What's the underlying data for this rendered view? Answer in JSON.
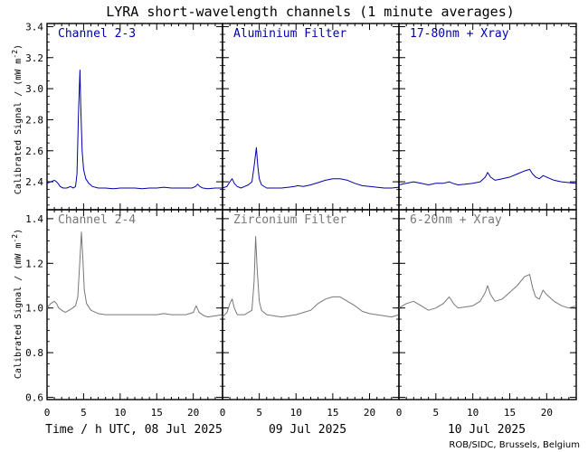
{
  "title": "LYRA short-wavelength channels (1 minute averages)",
  "credit": "ROB/SIDC, Brussels, Belgium",
  "ylabel_main": "Calibrated Signal / (mW m",
  "ylabel_sup": "-2",
  "ylabel_end": ")",
  "colors": {
    "top": "#0000aa",
    "bottom": "#777777",
    "axis": "#000000"
  },
  "chart_data": {
    "type": "scatter",
    "x_ticks": [
      "0",
      "5",
      "10",
      "15",
      "20"
    ],
    "x_range": [
      0,
      24
    ],
    "day_labels": [
      "Time / h UTC, 08 Jul 2025",
      "09 Jul 2025",
      "10 Jul 2025"
    ],
    "rows": [
      {
        "ylim": [
          2.22,
          3.42
        ],
        "y_ticks": [
          "2.4",
          "2.6",
          "2.8",
          "3.0",
          "3.2",
          "3.4"
        ],
        "y_tick_values": [
          2.4,
          2.6,
          2.8,
          3.0,
          3.2,
          3.4
        ],
        "panels": [
          {
            "name": "Channel 2-3",
            "series": [
              [
                0,
                2.39
              ],
              [
                0.5,
                2.4
              ],
              [
                1,
                2.41
              ],
              [
                1.3,
                2.4
              ],
              [
                1.5,
                2.39
              ],
              [
                1.8,
                2.37
              ],
              [
                2.2,
                2.36
              ],
              [
                2.7,
                2.36
              ],
              [
                3.2,
                2.37
              ],
              [
                3.6,
                2.36
              ],
              [
                3.9,
                2.37
              ],
              [
                4.1,
                2.45
              ],
              [
                4.3,
                2.85
              ],
              [
                4.5,
                3.12
              ],
              [
                4.6,
                2.9
              ],
              [
                4.8,
                2.6
              ],
              [
                5.0,
                2.48
              ],
              [
                5.3,
                2.42
              ],
              [
                5.7,
                2.39
              ],
              [
                6.2,
                2.37
              ],
              [
                7,
                2.36
              ],
              [
                8,
                2.36
              ],
              [
                9,
                2.355
              ],
              [
                10,
                2.36
              ],
              [
                11,
                2.36
              ],
              [
                12,
                2.36
              ],
              [
                13,
                2.355
              ],
              [
                14,
                2.36
              ],
              [
                15,
                2.36
              ],
              [
                16,
                2.365
              ],
              [
                17,
                2.36
              ],
              [
                18,
                2.36
              ],
              [
                19,
                2.36
              ],
              [
                19.8,
                2.36
              ],
              [
                20.3,
                2.37
              ],
              [
                20.6,
                2.385
              ],
              [
                20.9,
                2.37
              ],
              [
                21.3,
                2.36
              ],
              [
                22,
                2.355
              ],
              [
                23,
                2.36
              ],
              [
                24,
                2.36
              ]
            ]
          },
          {
            "name": "Aluminium Filter",
            "series": [
              [
                0,
                2.36
              ],
              [
                0.6,
                2.37
              ],
              [
                1,
                2.4
              ],
              [
                1.3,
                2.42
              ],
              [
                1.6,
                2.39
              ],
              [
                2,
                2.37
              ],
              [
                2.5,
                2.36
              ],
              [
                3,
                2.37
              ],
              [
                3.5,
                2.38
              ],
              [
                4,
                2.4
              ],
              [
                4.3,
                2.5
              ],
              [
                4.6,
                2.62
              ],
              [
                4.8,
                2.5
              ],
              [
                5.0,
                2.42
              ],
              [
                5.3,
                2.38
              ],
              [
                6,
                2.36
              ],
              [
                7,
                2.36
              ],
              [
                8,
                2.36
              ],
              [
                9,
                2.365
              ],
              [
                9.8,
                2.37
              ],
              [
                10.2,
                2.375
              ],
              [
                11,
                2.37
              ],
              [
                12,
                2.38
              ],
              [
                13,
                2.395
              ],
              [
                14,
                2.41
              ],
              [
                15,
                2.42
              ],
              [
                16,
                2.42
              ],
              [
                17,
                2.41
              ],
              [
                18,
                2.39
              ],
              [
                19,
                2.375
              ],
              [
                20,
                2.37
              ],
              [
                21,
                2.365
              ],
              [
                22,
                2.36
              ],
              [
                23,
                2.36
              ],
              [
                24,
                2.365
              ]
            ]
          },
          {
            "name": "17-80nm + Xray",
            "series": [
              [
                0,
                2.38
              ],
              [
                1,
                2.39
              ],
              [
                2,
                2.4
              ],
              [
                3,
                2.39
              ],
              [
                4,
                2.38
              ],
              [
                5,
                2.39
              ],
              [
                6,
                2.39
              ],
              [
                6.8,
                2.4
              ],
              [
                7.3,
                2.39
              ],
              [
                8,
                2.38
              ],
              [
                9,
                2.385
              ],
              [
                10,
                2.39
              ],
              [
                11,
                2.4
              ],
              [
                11.7,
                2.43
              ],
              [
                12,
                2.46
              ],
              [
                12.4,
                2.43
              ],
              [
                13,
                2.41
              ],
              [
                14,
                2.42
              ],
              [
                15,
                2.43
              ],
              [
                16,
                2.45
              ],
              [
                17,
                2.47
              ],
              [
                17.7,
                2.48
              ],
              [
                18.1,
                2.45
              ],
              [
                18.5,
                2.43
              ],
              [
                19,
                2.42
              ],
              [
                19.5,
                2.44
              ],
              [
                20,
                2.43
              ],
              [
                21,
                2.41
              ],
              [
                22,
                2.4
              ],
              [
                23,
                2.395
              ],
              [
                24,
                2.39
              ]
            ]
          }
        ]
      },
      {
        "ylim": [
          0.59,
          1.44
        ],
        "y_ticks": [
          "0.6",
          "0.8",
          "1.0",
          "1.2",
          "1.4"
        ],
        "y_tick_values": [
          0.6,
          0.8,
          1.0,
          1.2,
          1.4
        ],
        "panels": [
          {
            "name": "Channel 2-4",
            "series": [
              [
                0,
                1.0
              ],
              [
                0.5,
                1.02
              ],
              [
                1,
                1.03
              ],
              [
                1.3,
                1.02
              ],
              [
                1.6,
                1.0
              ],
              [
                2,
                0.99
              ],
              [
                2.5,
                0.98
              ],
              [
                3,
                0.99
              ],
              [
                3.5,
                1.0
              ],
              [
                3.9,
                1.01
              ],
              [
                4.2,
                1.05
              ],
              [
                4.5,
                1.22
              ],
              [
                4.7,
                1.34
              ],
              [
                4.9,
                1.22
              ],
              [
                5.1,
                1.08
              ],
              [
                5.4,
                1.02
              ],
              [
                6,
                0.99
              ],
              [
                7,
                0.975
              ],
              [
                8,
                0.97
              ],
              [
                9,
                0.97
              ],
              [
                10,
                0.97
              ],
              [
                11,
                0.97
              ],
              [
                12,
                0.97
              ],
              [
                13,
                0.97
              ],
              [
                14,
                0.97
              ],
              [
                15,
                0.97
              ],
              [
                16,
                0.975
              ],
              [
                17,
                0.97
              ],
              [
                18,
                0.97
              ],
              [
                19,
                0.97
              ],
              [
                20,
                0.98
              ],
              [
                20.4,
                1.01
              ],
              [
                20.8,
                0.98
              ],
              [
                21.5,
                0.965
              ],
              [
                22,
                0.96
              ],
              [
                23,
                0.965
              ],
              [
                24,
                0.97
              ]
            ]
          },
          {
            "name": "Zirconium Filter",
            "series": [
              [
                0,
                0.96
              ],
              [
                0.6,
                0.98
              ],
              [
                1,
                1.02
              ],
              [
                1.3,
                1.04
              ],
              [
                1.6,
                1.0
              ],
              [
                2,
                0.97
              ],
              [
                3,
                0.97
              ],
              [
                4,
                0.99
              ],
              [
                4.3,
                1.12
              ],
              [
                4.5,
                1.32
              ],
              [
                4.7,
                1.18
              ],
              [
                5.0,
                1.03
              ],
              [
                5.3,
                0.99
              ],
              [
                6,
                0.97
              ],
              [
                7,
                0.965
              ],
              [
                8,
                0.96
              ],
              [
                9,
                0.965
              ],
              [
                10,
                0.97
              ],
              [
                11,
                0.98
              ],
              [
                12,
                0.99
              ],
              [
                13,
                1.02
              ],
              [
                14,
                1.04
              ],
              [
                15,
                1.05
              ],
              [
                16,
                1.05
              ],
              [
                17,
                1.03
              ],
              [
                18,
                1.01
              ],
              [
                19,
                0.985
              ],
              [
                20,
                0.975
              ],
              [
                21,
                0.97
              ],
              [
                22,
                0.965
              ],
              [
                23,
                0.96
              ],
              [
                24,
                0.97
              ]
            ]
          },
          {
            "name": "6-20nm + Xray",
            "series": [
              [
                0,
                1.0
              ],
              [
                1,
                1.02
              ],
              [
                2,
                1.03
              ],
              [
                3,
                1.01
              ],
              [
                4,
                0.99
              ],
              [
                5,
                1.0
              ],
              [
                6,
                1.02
              ],
              [
                6.8,
                1.05
              ],
              [
                7.4,
                1.02
              ],
              [
                8,
                1.0
              ],
              [
                9,
                1.005
              ],
              [
                10,
                1.01
              ],
              [
                11,
                1.03
              ],
              [
                11.7,
                1.07
              ],
              [
                12,
                1.1
              ],
              [
                12.4,
                1.06
              ],
              [
                13,
                1.03
              ],
              [
                14,
                1.04
              ],
              [
                15,
                1.07
              ],
              [
                16,
                1.1
              ],
              [
                17,
                1.14
              ],
              [
                17.7,
                1.15
              ],
              [
                18.1,
                1.09
              ],
              [
                18.5,
                1.05
              ],
              [
                19,
                1.04
              ],
              [
                19.5,
                1.08
              ],
              [
                20,
                1.06
              ],
              [
                21,
                1.03
              ],
              [
                22,
                1.01
              ],
              [
                23,
                1.0
              ],
              [
                24,
                1.01
              ]
            ]
          }
        ]
      }
    ]
  }
}
